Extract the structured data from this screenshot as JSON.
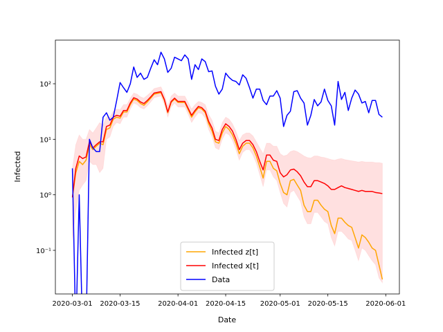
{
  "chart_data": {
    "type": "line",
    "y_label": "Infected",
    "x_label": "Date",
    "log_y": true,
    "legend": "lower center",
    "xlim": [
      "2020-02-25",
      "2020-06-05"
    ],
    "xticks": [
      "2020-03-01",
      "2020-03-15",
      "2020-04-01",
      "2020-04-15",
      "2020-05-01",
      "2020-05-15",
      "2020-06-01"
    ],
    "ylim": [
      0.0164,
      610
    ],
    "yticks": [
      {
        "value": 0.1,
        "label": "10⁻¹"
      },
      {
        "value": 1,
        "label": "10⁰"
      },
      {
        "value": 10,
        "label": "10¹"
      },
      {
        "value": 100,
        "label": "10²"
      }
    ],
    "x": [
      "2020-03-01",
      "2020-03-02",
      "2020-03-03",
      "2020-03-04",
      "2020-03-05",
      "2020-03-06",
      "2020-03-07",
      "2020-03-08",
      "2020-03-09",
      "2020-03-10",
      "2020-03-11",
      "2020-03-12",
      "2020-03-13",
      "2020-03-14",
      "2020-03-15",
      "2020-03-16",
      "2020-03-17",
      "2020-03-18",
      "2020-03-19",
      "2020-03-20",
      "2020-03-21",
      "2020-03-22",
      "2020-03-23",
      "2020-03-24",
      "2020-03-25",
      "2020-03-26",
      "2020-03-27",
      "2020-03-28",
      "2020-03-29",
      "2020-03-30",
      "2020-03-31",
      "2020-04-01",
      "2020-04-02",
      "2020-04-03",
      "2020-04-04",
      "2020-04-05",
      "2020-04-06",
      "2020-04-07",
      "2020-04-08",
      "2020-04-09",
      "2020-04-10",
      "2020-04-11",
      "2020-04-12",
      "2020-04-13",
      "2020-04-14",
      "2020-04-15",
      "2020-04-16",
      "2020-04-17",
      "2020-04-18",
      "2020-04-19",
      "2020-04-20",
      "2020-04-21",
      "2020-04-22",
      "2020-04-23",
      "2020-04-24",
      "2020-04-25",
      "2020-04-26",
      "2020-04-27",
      "2020-04-28",
      "2020-04-29",
      "2020-04-30",
      "2020-05-01",
      "2020-05-02",
      "2020-05-03",
      "2020-05-04",
      "2020-05-05",
      "2020-05-06",
      "2020-05-07",
      "2020-05-08",
      "2020-05-09",
      "2020-05-10",
      "2020-05-11",
      "2020-05-12",
      "2020-05-13",
      "2020-05-14",
      "2020-05-15",
      "2020-05-16",
      "2020-05-17",
      "2020-05-18",
      "2020-05-19",
      "2020-05-20",
      "2020-05-21",
      "2020-05-22",
      "2020-05-23",
      "2020-05-24",
      "2020-05-25",
      "2020-05-26",
      "2020-05-27",
      "2020-05-28",
      "2020-05-29",
      "2020-05-30",
      "2020-05-31"
    ],
    "band": {
      "color": "#ff0000",
      "opacity": 0.12,
      "lower": [
        0.15,
        0.5,
        1.2,
        1.5,
        1.8,
        4,
        3.5,
        3.5,
        2.5,
        3,
        10,
        11,
        17,
        20,
        19,
        25,
        25,
        35,
        45,
        42,
        37,
        35,
        40,
        47,
        56,
        58,
        60,
        42,
        25,
        38,
        45,
        38,
        38,
        38,
        28,
        20,
        25,
        30,
        29,
        24,
        15,
        11,
        7,
        6.5,
        10,
        13,
        12,
        9.5,
        6.5,
        4.2,
        5.8,
        6.5,
        6.5,
        5.2,
        3.7,
        2.3,
        1.4,
        2.8,
        2.8,
        2.1,
        1.8,
        1.1,
        0.7,
        0.6,
        1.1,
        1.2,
        0.95,
        0.75,
        0.4,
        0.3,
        0.3,
        0.48,
        0.48,
        0.4,
        0.33,
        0.3,
        0.17,
        0.12,
        0.22,
        0.22,
        0.19,
        0.16,
        0.15,
        0.1,
        0.065,
        0.11,
        0.1,
        0.08,
        0.065,
        0.055,
        0.032,
        0.026
      ],
      "upper": [
        3,
        8,
        12,
        10,
        10,
        15,
        13,
        16,
        20,
        18,
        25,
        25,
        32,
        35,
        34,
        42,
        42,
        55,
        68,
        65,
        58,
        55,
        62,
        70,
        82,
        85,
        88,
        65,
        40,
        60,
        68,
        60,
        60,
        60,
        46,
        35,
        42,
        48,
        46,
        42,
        28,
        22,
        14,
        13,
        20,
        25,
        23,
        19,
        14,
        9.5,
        12,
        13,
        13,
        11.5,
        9,
        7,
        5.5,
        8.5,
        8.5,
        7.5,
        7.5,
        5.5,
        5,
        5.2,
        6,
        6.3,
        6,
        5.5,
        5,
        4.7,
        4.6,
        5,
        5,
        4.8,
        4.7,
        4.5,
        4.3,
        4.2,
        4.4,
        4.5,
        4.3,
        4.2,
        4.1,
        4,
        3.9,
        4,
        3.9,
        3.9,
        3.9,
        3.8,
        3.8,
        3.7
      ]
    },
    "series": [
      {
        "name": "Infected z[t]",
        "color": "#ffa500",
        "values": [
          0.9,
          2.5,
          4,
          3.5,
          4.2,
          8,
          6.5,
          7.5,
          8.5,
          8,
          15,
          16,
          23,
          25,
          24,
          31,
          31,
          42,
          53,
          50,
          44,
          41,
          47,
          55,
          65,
          67,
          69,
          50,
          30,
          46,
          53,
          46,
          46,
          46,
          34,
          25,
          31,
          37,
          35,
          30,
          19,
          14,
          9,
          8.5,
          13,
          17,
          15,
          12,
          8.5,
          5.5,
          7.5,
          8.5,
          8.5,
          7,
          5,
          3.2,
          2,
          4,
          4,
          3,
          2.7,
          1.6,
          1.1,
          1,
          1.8,
          1.9,
          1.5,
          1.2,
          0.65,
          0.5,
          0.5,
          0.8,
          0.8,
          0.65,
          0.55,
          0.5,
          0.28,
          0.2,
          0.38,
          0.38,
          0.32,
          0.28,
          0.26,
          0.17,
          0.11,
          0.19,
          0.17,
          0.14,
          0.11,
          0.1,
          0.055,
          0.03
        ]
      },
      {
        "name": "Infected x[t]",
        "color": "#ff0000",
        "values": [
          0.9,
          3,
          5,
          4.5,
          4.8,
          9,
          7,
          8,
          9,
          9,
          17,
          18,
          25,
          27,
          26,
          33,
          33,
          45,
          56,
          53,
          47,
          44,
          50,
          58,
          68,
          70,
          72,
          52,
          31,
          48,
          55,
          48,
          48,
          48,
          36,
          27,
          33,
          39,
          37,
          32,
          21,
          16,
          10,
          9.5,
          15,
          19,
          17,
          14,
          10,
          6.5,
          8.5,
          9.5,
          9.5,
          8,
          6,
          4,
          2.8,
          5.2,
          5.2,
          4.2,
          4,
          2.5,
          2.1,
          2.3,
          2.8,
          2.9,
          2.6,
          2.2,
          1.7,
          1.4,
          1.4,
          1.8,
          1.8,
          1.7,
          1.6,
          1.45,
          1.25,
          1.25,
          1.35,
          1.45,
          1.35,
          1.3,
          1.25,
          1.2,
          1.15,
          1.2,
          1.15,
          1.15,
          1.15,
          1.1,
          1.08,
          1.05
        ]
      },
      {
        "name": "Data",
        "color": "#0000ff",
        "values": [
          3,
          0,
          1,
          0,
          0,
          10,
          7,
          6,
          6,
          25,
          30,
          22,
          25,
          50,
          105,
          85,
          70,
          100,
          200,
          130,
          155,
          120,
          130,
          190,
          270,
          220,
          370,
          280,
          160,
          190,
          300,
          280,
          260,
          330,
          280,
          120,
          220,
          180,
          280,
          250,
          165,
          170,
          90,
          65,
          80,
          155,
          130,
          115,
          110,
          95,
          145,
          125,
          85,
          55,
          80,
          80,
          50,
          42,
          60,
          60,
          75,
          55,
          17,
          27,
          32,
          72,
          75,
          55,
          45,
          18,
          27,
          52,
          40,
          47,
          80,
          50,
          40,
          18,
          110,
          52,
          70,
          33,
          55,
          77,
          65,
          45,
          48,
          30,
          50,
          50,
          28,
          25
        ]
      }
    ]
  }
}
